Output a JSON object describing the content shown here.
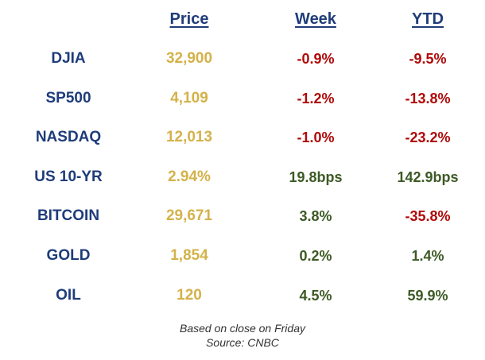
{
  "headers": {
    "price": "Price",
    "week": "Week",
    "ytd": "YTD"
  },
  "rows": [
    {
      "name": "DJIA",
      "price": "32,900",
      "week": "-0.9%",
      "ytd": "-9.5%"
    },
    {
      "name": "SP500",
      "price": "4,109",
      "week": "-1.2%",
      "ytd": "-13.8%"
    },
    {
      "name": "NASDAQ",
      "price": "12,013",
      "week": "-1.0%",
      "ytd": "-23.2%"
    },
    {
      "name": "US 10-YR",
      "price": "2.94%",
      "week": "19.8bps",
      "ytd": "142.9bps"
    },
    {
      "name": "BITCOIN",
      "price": "29,671",
      "week": "3.8%",
      "ytd": "-35.8%"
    },
    {
      "name": "GOLD",
      "price": "1,854",
      "week": "0.2%",
      "ytd": "1.4%"
    },
    {
      "name": "OIL",
      "price": "120",
      "week": "4.5%",
      "ytd": "59.9%"
    }
  ],
  "footer": {
    "line1": "Based on close on Friday",
    "line2": "Source: CNBC"
  },
  "colors": {
    "label_blue": "#1f3c7a",
    "price_gold": "#d4b24a",
    "negative_red": "#b00a0a",
    "positive_green": "#3d5a25"
  }
}
